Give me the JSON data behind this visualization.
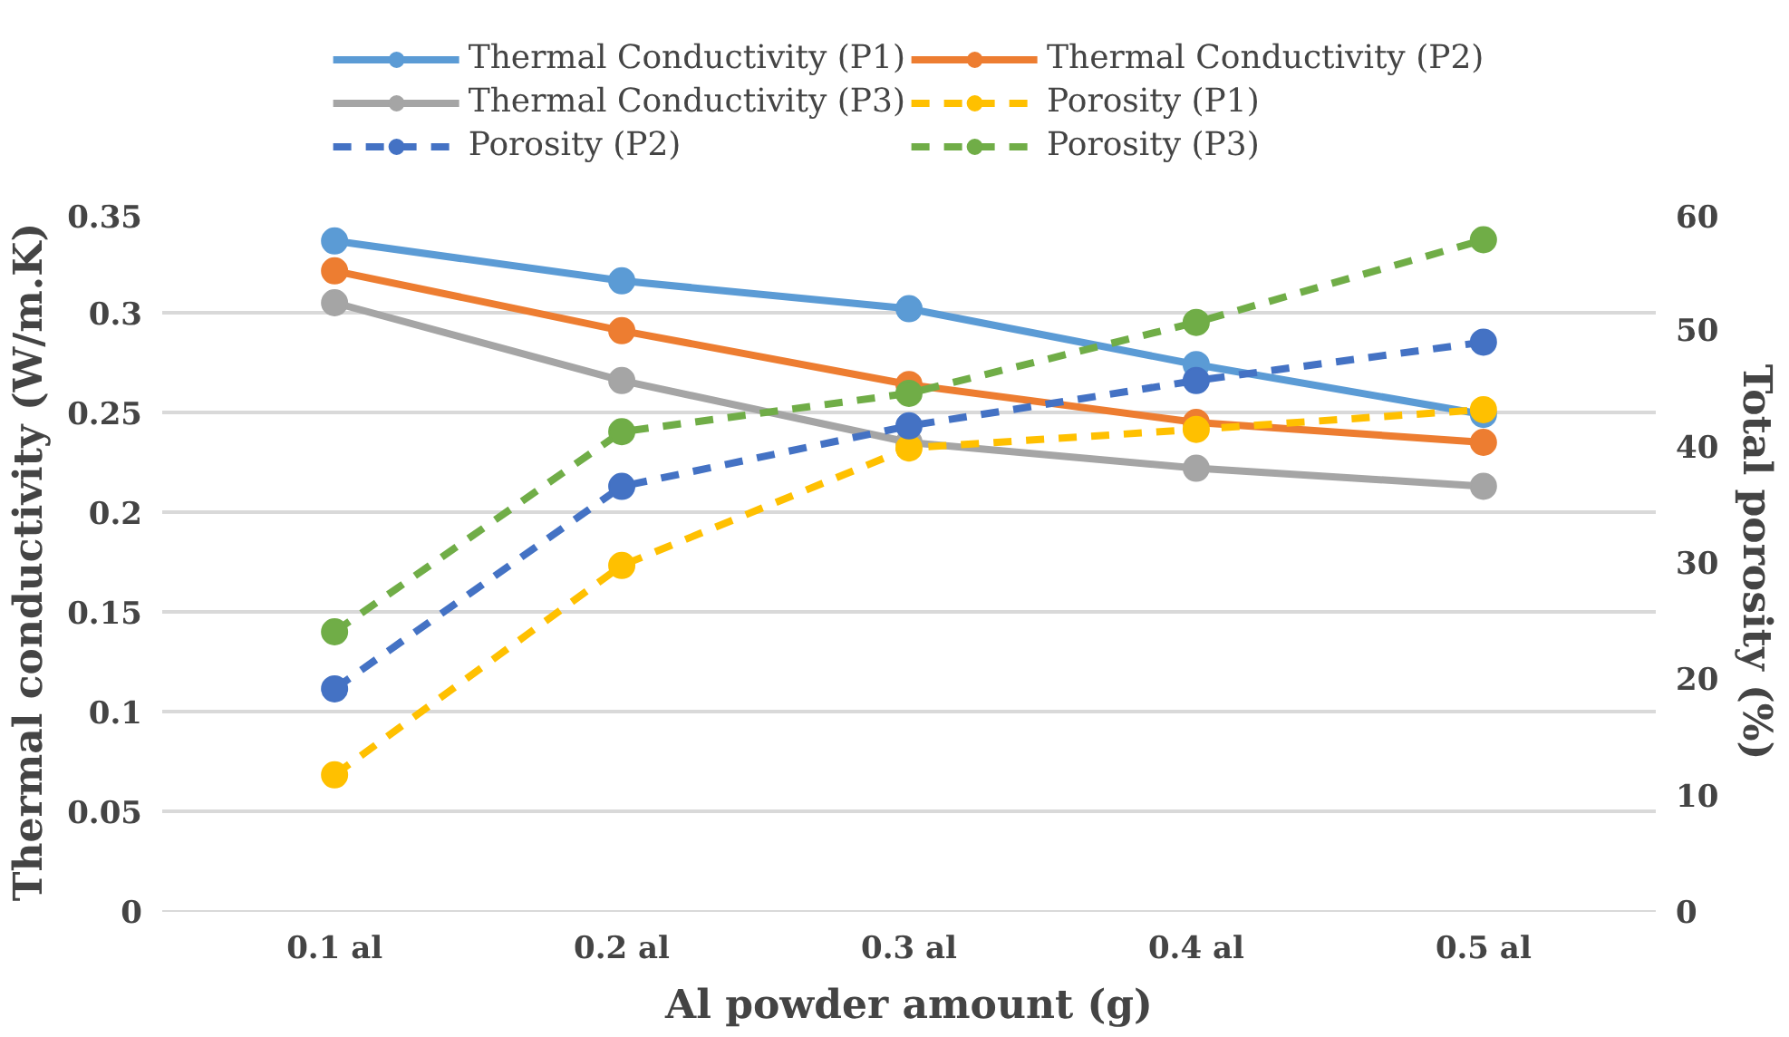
{
  "chart_data": {
    "type": "line",
    "xlabel": "Al powder amount (g)",
    "ylabel": "Thermal conductivity (W/m.K)",
    "y2label": "Total porosity (%)",
    "categories": [
      "0.1 al",
      "0.2 al",
      "0.3 al",
      "0.4 al",
      "0.5 al"
    ],
    "ylim": [
      0,
      0.35
    ],
    "yticks": [
      0,
      0.05,
      0.1,
      0.15,
      0.2,
      0.25,
      0.3,
      0.35
    ],
    "y2lim": [
      0,
      60
    ],
    "y2ticks": [
      0,
      10,
      20,
      30,
      40,
      50,
      60
    ],
    "grid": "y",
    "legend": "top",
    "marker": "circle",
    "series": [
      {
        "name": "Thermal Conductivity (P1)",
        "color": "#5b9bd5",
        "line_style": "solid",
        "values": [
          0.336,
          0.316,
          0.302,
          0.274,
          0.249
        ]
      },
      {
        "name": "Thermal Conductivity (P2)",
        "color": "#ed7d31",
        "line_style": "solid",
        "values": [
          0.321,
          0.291,
          0.264,
          0.245,
          0.235
        ]
      },
      {
        "name": "Thermal Conductivity (P3)",
        "color": "#a5a5a5",
        "line_style": "solid",
        "values": [
          0.305,
          0.266,
          0.235,
          0.222,
          0.213
        ]
      },
      {
        "name": "Porosity (P1)",
        "color": "#ffc000",
        "line_style": "dashed",
        "axis": "y2",
        "values": [
          11.7,
          29.7,
          39.8,
          41.4,
          43.1
        ]
      },
      {
        "name": "Porosity (P2)",
        "color": "#4472c4",
        "line_style": "dashed",
        "axis": "y2",
        "values": [
          19.1,
          36.5,
          41.7,
          45.6,
          48.9
        ]
      },
      {
        "name": "Porosity (P3)",
        "color": "#70ad47",
        "line_style": "dashed",
        "axis": "y2",
        "values": [
          24,
          41.2,
          44.5,
          50.6,
          57.7
        ]
      }
    ]
  }
}
